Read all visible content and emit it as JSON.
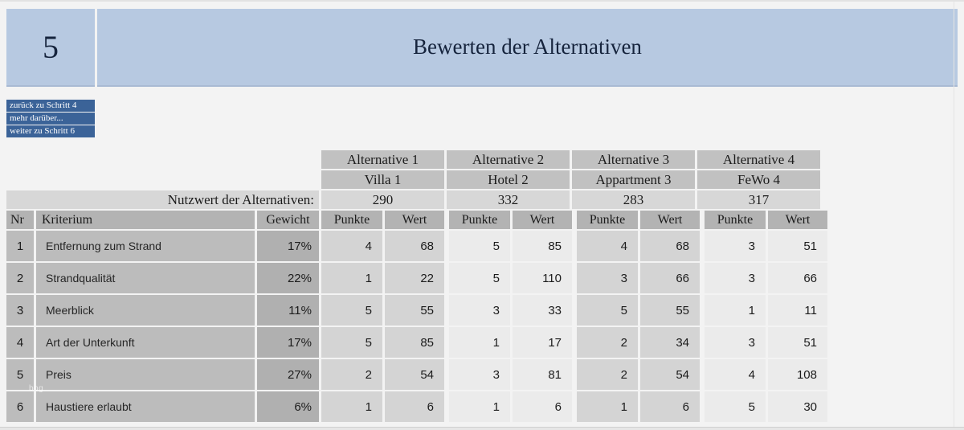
{
  "header": {
    "step_number": "5",
    "title": "Bewerten der Alternativen"
  },
  "nav": {
    "buttons": [
      {
        "label": "zurück zu Schritt 4"
      },
      {
        "label": "mehr darüber..."
      },
      {
        "label": "weiter zu Schritt 6"
      }
    ]
  },
  "watermark_text": "bog",
  "chart_data": {
    "type": "table",
    "title": "Bewerten der Alternativen",
    "alternatives": [
      "Alternative 1",
      "Alternative 2",
      "Alternative 3",
      "Alternative 4"
    ],
    "objects": [
      "Villa 1",
      "Hotel 2",
      "Appartment 3",
      "FeWo 4"
    ],
    "nutzwerte": [
      290,
      332,
      283,
      317
    ],
    "kriterien": [
      "Entfernung zum Strand",
      "Strandqualität",
      "Meerblick",
      "Art der Unterkunft",
      "Preis",
      "Haustiere erlaubt"
    ],
    "gewichte_prozent": [
      17,
      22,
      11,
      17,
      27,
      6
    ],
    "punkte": [
      [
        4,
        5,
        4,
        3
      ],
      [
        1,
        5,
        3,
        3
      ],
      [
        5,
        3,
        5,
        1
      ],
      [
        5,
        1,
        2,
        3
      ],
      [
        2,
        3,
        2,
        4
      ],
      [
        1,
        1,
        1,
        5
      ]
    ],
    "werte": [
      [
        68,
        85,
        68,
        51
      ],
      [
        22,
        110,
        66,
        66
      ],
      [
        55,
        33,
        55,
        11
      ],
      [
        85,
        17,
        34,
        51
      ],
      [
        54,
        81,
        54,
        108
      ],
      [
        6,
        6,
        6,
        30
      ]
    ]
  },
  "table": {
    "nutzwert_label": "Nutzwert der Alternativen:",
    "columns": {
      "nr": "Nr",
      "kriterium": "Kriterium",
      "gewicht": "Gewicht",
      "punkte": "Punkte",
      "wert": "Wert"
    },
    "alternatives": [
      {
        "name": "Alternative 1",
        "object": "Villa 1",
        "nutzwert": "290"
      },
      {
        "name": "Alternative 2",
        "object": "Hotel 2",
        "nutzwert": "332"
      },
      {
        "name": "Alternative 3",
        "object": "Appartment 3",
        "nutzwert": "283"
      },
      {
        "name": "Alternative 4",
        "object": "FeWo 4",
        "nutzwert": "317"
      }
    ],
    "rows": [
      {
        "nr": "1",
        "kriterium": "Entfernung zum Strand",
        "gewicht": "17%",
        "values": [
          {
            "punkte": "4",
            "wert": "68"
          },
          {
            "punkte": "5",
            "wert": "85"
          },
          {
            "punkte": "4",
            "wert": "68"
          },
          {
            "punkte": "3",
            "wert": "51"
          }
        ]
      },
      {
        "nr": "2",
        "kriterium": "Strandqualität",
        "gewicht": "22%",
        "values": [
          {
            "punkte": "1",
            "wert": "22"
          },
          {
            "punkte": "5",
            "wert": "110"
          },
          {
            "punkte": "3",
            "wert": "66"
          },
          {
            "punkte": "3",
            "wert": "66"
          }
        ]
      },
      {
        "nr": "3",
        "kriterium": "Meerblick",
        "gewicht": "11%",
        "values": [
          {
            "punkte": "5",
            "wert": "55"
          },
          {
            "punkte": "3",
            "wert": "33"
          },
          {
            "punkte": "5",
            "wert": "55"
          },
          {
            "punkte": "1",
            "wert": "11"
          }
        ]
      },
      {
        "nr": "4",
        "kriterium": "Art der Unterkunft",
        "gewicht": "17%",
        "values": [
          {
            "punkte": "5",
            "wert": "85"
          },
          {
            "punkte": "1",
            "wert": "17"
          },
          {
            "punkte": "2",
            "wert": "34"
          },
          {
            "punkte": "3",
            "wert": "51"
          }
        ]
      },
      {
        "nr": "5",
        "kriterium": "Preis",
        "gewicht": "27%",
        "values": [
          {
            "punkte": "2",
            "wert": "54"
          },
          {
            "punkte": "3",
            "wert": "81"
          },
          {
            "punkte": "2",
            "wert": "54"
          },
          {
            "punkte": "4",
            "wert": "108"
          }
        ]
      },
      {
        "nr": "6",
        "kriterium": "Haustiere erlaubt",
        "gewicht": "6%",
        "values": [
          {
            "punkte": "1",
            "wert": "6"
          },
          {
            "punkte": "1",
            "wert": "6"
          },
          {
            "punkte": "1",
            "wert": "6"
          },
          {
            "punkte": "5",
            "wert": "30"
          }
        ]
      }
    ]
  },
  "colors": {
    "banner": "#b7c9e1",
    "title_text": "#16243d",
    "button": "#3b6398",
    "button_text": "#ffffff",
    "header_gray": "#c1c1c1",
    "colhead_gray": "#b3b3b3",
    "row_label_gray": "#bcbcbc",
    "gewicht_gray": "#b0b0b0",
    "value_dark": "#d4d4d4",
    "value_light": "#ebebeb",
    "nutzwert_row": "#d7d7d7",
    "page_bg": "#f3f3f3"
  }
}
